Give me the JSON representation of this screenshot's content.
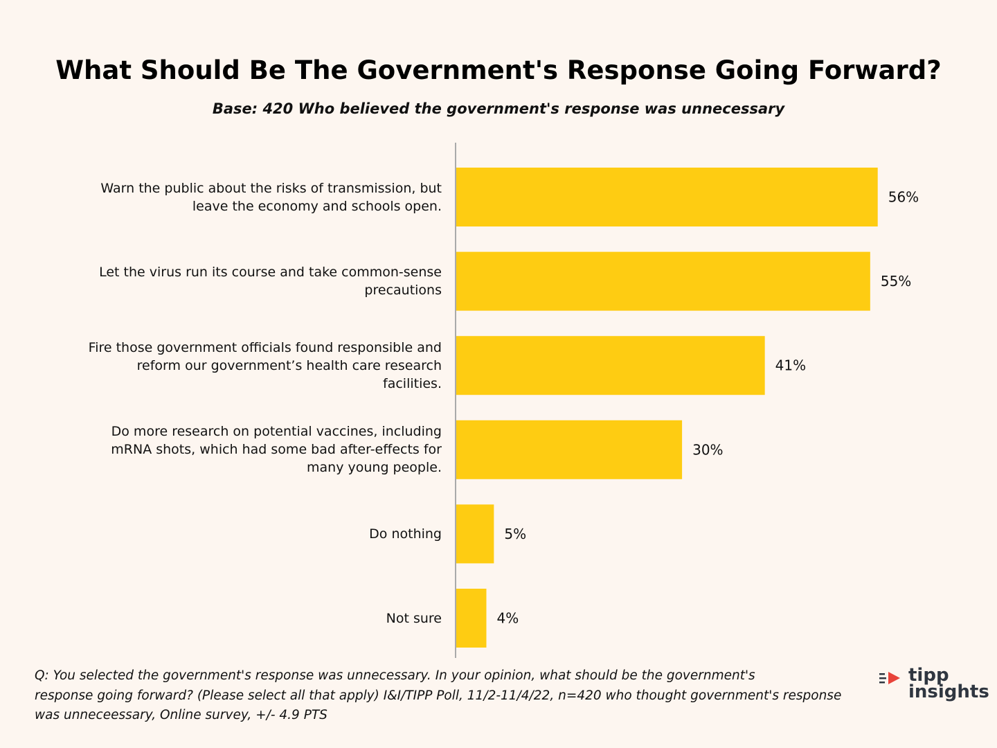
{
  "colors": {
    "bar": "#fecc12",
    "axis": "#aaaaaa",
    "background": "#fdf6f0"
  },
  "chart_data": {
    "type": "bar",
    "orientation": "horizontal",
    "title": "What Should Be The Government's Response Going Forward?",
    "subtitle": "Base: 420 Who believed the government's response was unnecessary",
    "categories": [
      [
        "Warn the public about the risks of transmission, but",
        "leave the economy and schools open."
      ],
      [
        "Let the virus run its course and take common-sense",
        "precautions"
      ],
      [
        "Fire those government officials found responsible and",
        "reform our government’s health care research",
        "facilities."
      ],
      [
        "Do more research on potential vaccines, including",
        "mRNA shots, which had some bad after-effects for",
        "many young people."
      ],
      [
        "Do nothing"
      ],
      [
        "Not sure"
      ]
    ],
    "values": [
      56,
      55,
      41,
      30,
      5,
      4
    ],
    "value_labels": [
      "56%",
      "55%",
      "41%",
      "30%",
      "5%",
      "4%"
    ],
    "xlim": [
      0,
      60
    ],
    "xlabel": "",
    "ylabel": ""
  },
  "footnote": {
    "lines": [
      "Q:  You selected the government's response was unnecessary. In your opinion, what should be the government's",
      "response going forward? (Please select all that apply) I&I/TIPP Poll, 11/2-11/4/22, n=420 who thought government's response",
      "was unneceessary, Online survey, +/- 4.9 PTS"
    ]
  },
  "logo": {
    "top": "tipp",
    "bottom": "insights",
    "icon": "tipp-speed-icon"
  }
}
